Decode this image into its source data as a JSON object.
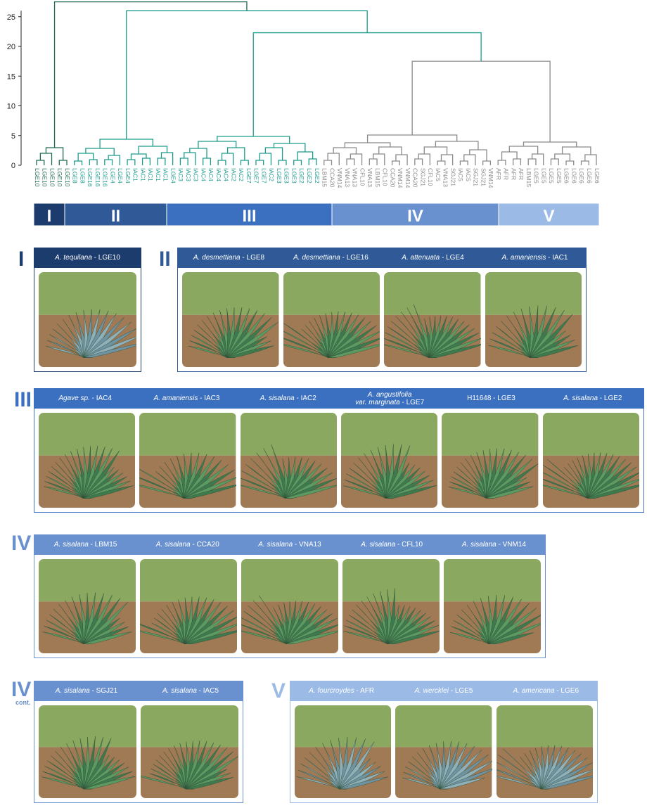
{
  "colors": {
    "group1": "#1d3c6e",
    "group2": "#2f5a97",
    "group3": "#3b6fbf",
    "group4": "#6a91cf",
    "group5": "#9bbbe6",
    "teal": "#1c9c8c",
    "darkgreen": "#1e6b4e",
    "gray": "#8a8a8a"
  },
  "dendrogram": {
    "y_ticks": [
      "0",
      "5",
      "10",
      "15",
      "20",
      "25"
    ],
    "leaves": [
      {
        "label": "LGE10",
        "c": "d"
      },
      {
        "label": "LGE10",
        "c": "d"
      },
      {
        "label": "LGE10",
        "c": "d"
      },
      {
        "label": "LGE10",
        "c": "d"
      },
      {
        "label": "LGE10",
        "c": "d"
      },
      {
        "label": "LGE8",
        "c": "t"
      },
      {
        "label": "LGE8",
        "c": "t"
      },
      {
        "label": "LGE16",
        "c": "t"
      },
      {
        "label": "LGE16",
        "c": "t"
      },
      {
        "label": "LGE16",
        "c": "t"
      },
      {
        "label": "LGE4",
        "c": "t"
      },
      {
        "label": "LGE4",
        "c": "t"
      },
      {
        "label": "LGE4",
        "c": "t"
      },
      {
        "label": "IAC1",
        "c": "t"
      },
      {
        "label": "IAC1",
        "c": "t"
      },
      {
        "label": "IAC1",
        "c": "t"
      },
      {
        "label": "IAC1",
        "c": "t"
      },
      {
        "label": "IAC1",
        "c": "t"
      },
      {
        "label": "LGE4",
        "c": "t"
      },
      {
        "label": "IAC3",
        "c": "t"
      },
      {
        "label": "IAC3",
        "c": "t"
      },
      {
        "label": "IAC3",
        "c": "t"
      },
      {
        "label": "IAC4",
        "c": "t"
      },
      {
        "label": "IAC4",
        "c": "t"
      },
      {
        "label": "IAC4",
        "c": "t"
      },
      {
        "label": "IAC4",
        "c": "t"
      },
      {
        "label": "IAC2",
        "c": "t"
      },
      {
        "label": "IAC2",
        "c": "t"
      },
      {
        "label": "LGE7",
        "c": "t"
      },
      {
        "label": "LGE7",
        "c": "t"
      },
      {
        "label": "LGE7",
        "c": "t"
      },
      {
        "label": "IAC2",
        "c": "t"
      },
      {
        "label": "LGE3",
        "c": "t"
      },
      {
        "label": "LGE3",
        "c": "t"
      },
      {
        "label": "LGE3",
        "c": "t"
      },
      {
        "label": "LGE2",
        "c": "t"
      },
      {
        "label": "LGE2",
        "c": "t"
      },
      {
        "label": "LGE2",
        "c": "t"
      },
      {
        "label": "LBM15",
        "c": "g"
      },
      {
        "label": "CCA20",
        "c": "g"
      },
      {
        "label": "VNM14",
        "c": "g"
      },
      {
        "label": "VNA13",
        "c": "g"
      },
      {
        "label": "VNA13",
        "c": "g"
      },
      {
        "label": "CFL10",
        "c": "g"
      },
      {
        "label": "VNA13",
        "c": "g"
      },
      {
        "label": "LBM15",
        "c": "g"
      },
      {
        "label": "CFL10",
        "c": "g"
      },
      {
        "label": "CCA20",
        "c": "g"
      },
      {
        "label": "VNM14",
        "c": "g"
      },
      {
        "label": "VNM14",
        "c": "g"
      },
      {
        "label": "CCA20",
        "c": "g"
      },
      {
        "label": "SGJ21",
        "c": "g"
      },
      {
        "label": "CFL10",
        "c": "g"
      },
      {
        "label": "IAC5",
        "c": "g"
      },
      {
        "label": "VNA13",
        "c": "g"
      },
      {
        "label": "SGJ21",
        "c": "g"
      },
      {
        "label": "IAC5",
        "c": "g"
      },
      {
        "label": "IAC5",
        "c": "g"
      },
      {
        "label": "SGJ21",
        "c": "g"
      },
      {
        "label": "SGJ21",
        "c": "g"
      },
      {
        "label": "VNM14",
        "c": "g"
      },
      {
        "label": "AFR",
        "c": "g"
      },
      {
        "label": "AFR",
        "c": "g"
      },
      {
        "label": "AFR",
        "c": "g"
      },
      {
        "label": "AFR",
        "c": "g"
      },
      {
        "label": "LBM15",
        "c": "g"
      },
      {
        "label": "LGE5",
        "c": "g"
      },
      {
        "label": "LGE5",
        "c": "g"
      },
      {
        "label": "LGE5",
        "c": "g"
      },
      {
        "label": "LGE5",
        "c": "g"
      },
      {
        "label": "LGE6",
        "c": "g"
      },
      {
        "label": "LGE6",
        "c": "g"
      },
      {
        "label": "LGE6",
        "c": "g"
      },
      {
        "label": "LGE6",
        "c": "g"
      },
      {
        "label": "LGE6",
        "c": "g"
      }
    ],
    "bar_labels": [
      "I",
      "II",
      "III",
      "IV",
      "V"
    ]
  },
  "panels": {
    "p1": {
      "label": "I",
      "captions": [
        {
          "sp": "A. tequilana",
          "code": " - LGE10"
        }
      ]
    },
    "p2": {
      "label": "II",
      "captions": [
        {
          "sp": "A. desmettiana",
          "code": " - LGE8"
        },
        {
          "sp": "A. desmettiana",
          "code": " - LGE16"
        },
        {
          "sp": "A. attenuata",
          "code": " - LGE4"
        },
        {
          "sp": "A. amaniensis",
          "code": " - IAC1"
        }
      ]
    },
    "p3": {
      "label": "III",
      "captions": [
        {
          "sp": "Agave sp.",
          "code": " - IAC4"
        },
        {
          "sp": "A. amaniensis",
          "code": " - IAC3"
        },
        {
          "sp": "A. sisalana",
          "code": " - IAC2"
        },
        {
          "sp": "A. angustifolia",
          "sp2": "var. marginata",
          "code": " - LGE7"
        },
        {
          "sp": "",
          "code": "H11648 - LGE3"
        },
        {
          "sp": "A. sisalana",
          "code": " - LGE2"
        }
      ]
    },
    "p4": {
      "label": "IV",
      "captions": [
        {
          "sp": "A. sisalana",
          "code": " - LBM15"
        },
        {
          "sp": "A. sisalana",
          "code": " - CCA20"
        },
        {
          "sp": "A. sisalana",
          "code": " - VNA13"
        },
        {
          "sp": "A. sisalana",
          "code": " - CFL10"
        },
        {
          "sp": "A. sisalana",
          "code": " - VNM14"
        }
      ]
    },
    "p5": {
      "label": "IV",
      "cont": "cont.",
      "captions": [
        {
          "sp": "A. sisalana",
          "code": " - SGJ21"
        },
        {
          "sp": "A. sisalana",
          "code": " - IAC5"
        }
      ]
    },
    "p6": {
      "label": "V",
      "captions": [
        {
          "sp": "A. fourcroydes",
          "code": " - AFR"
        },
        {
          "sp": "A. wercklei",
          "code": " - LGE5"
        },
        {
          "sp": "A. americana",
          "code": " - LGE6"
        }
      ]
    }
  }
}
